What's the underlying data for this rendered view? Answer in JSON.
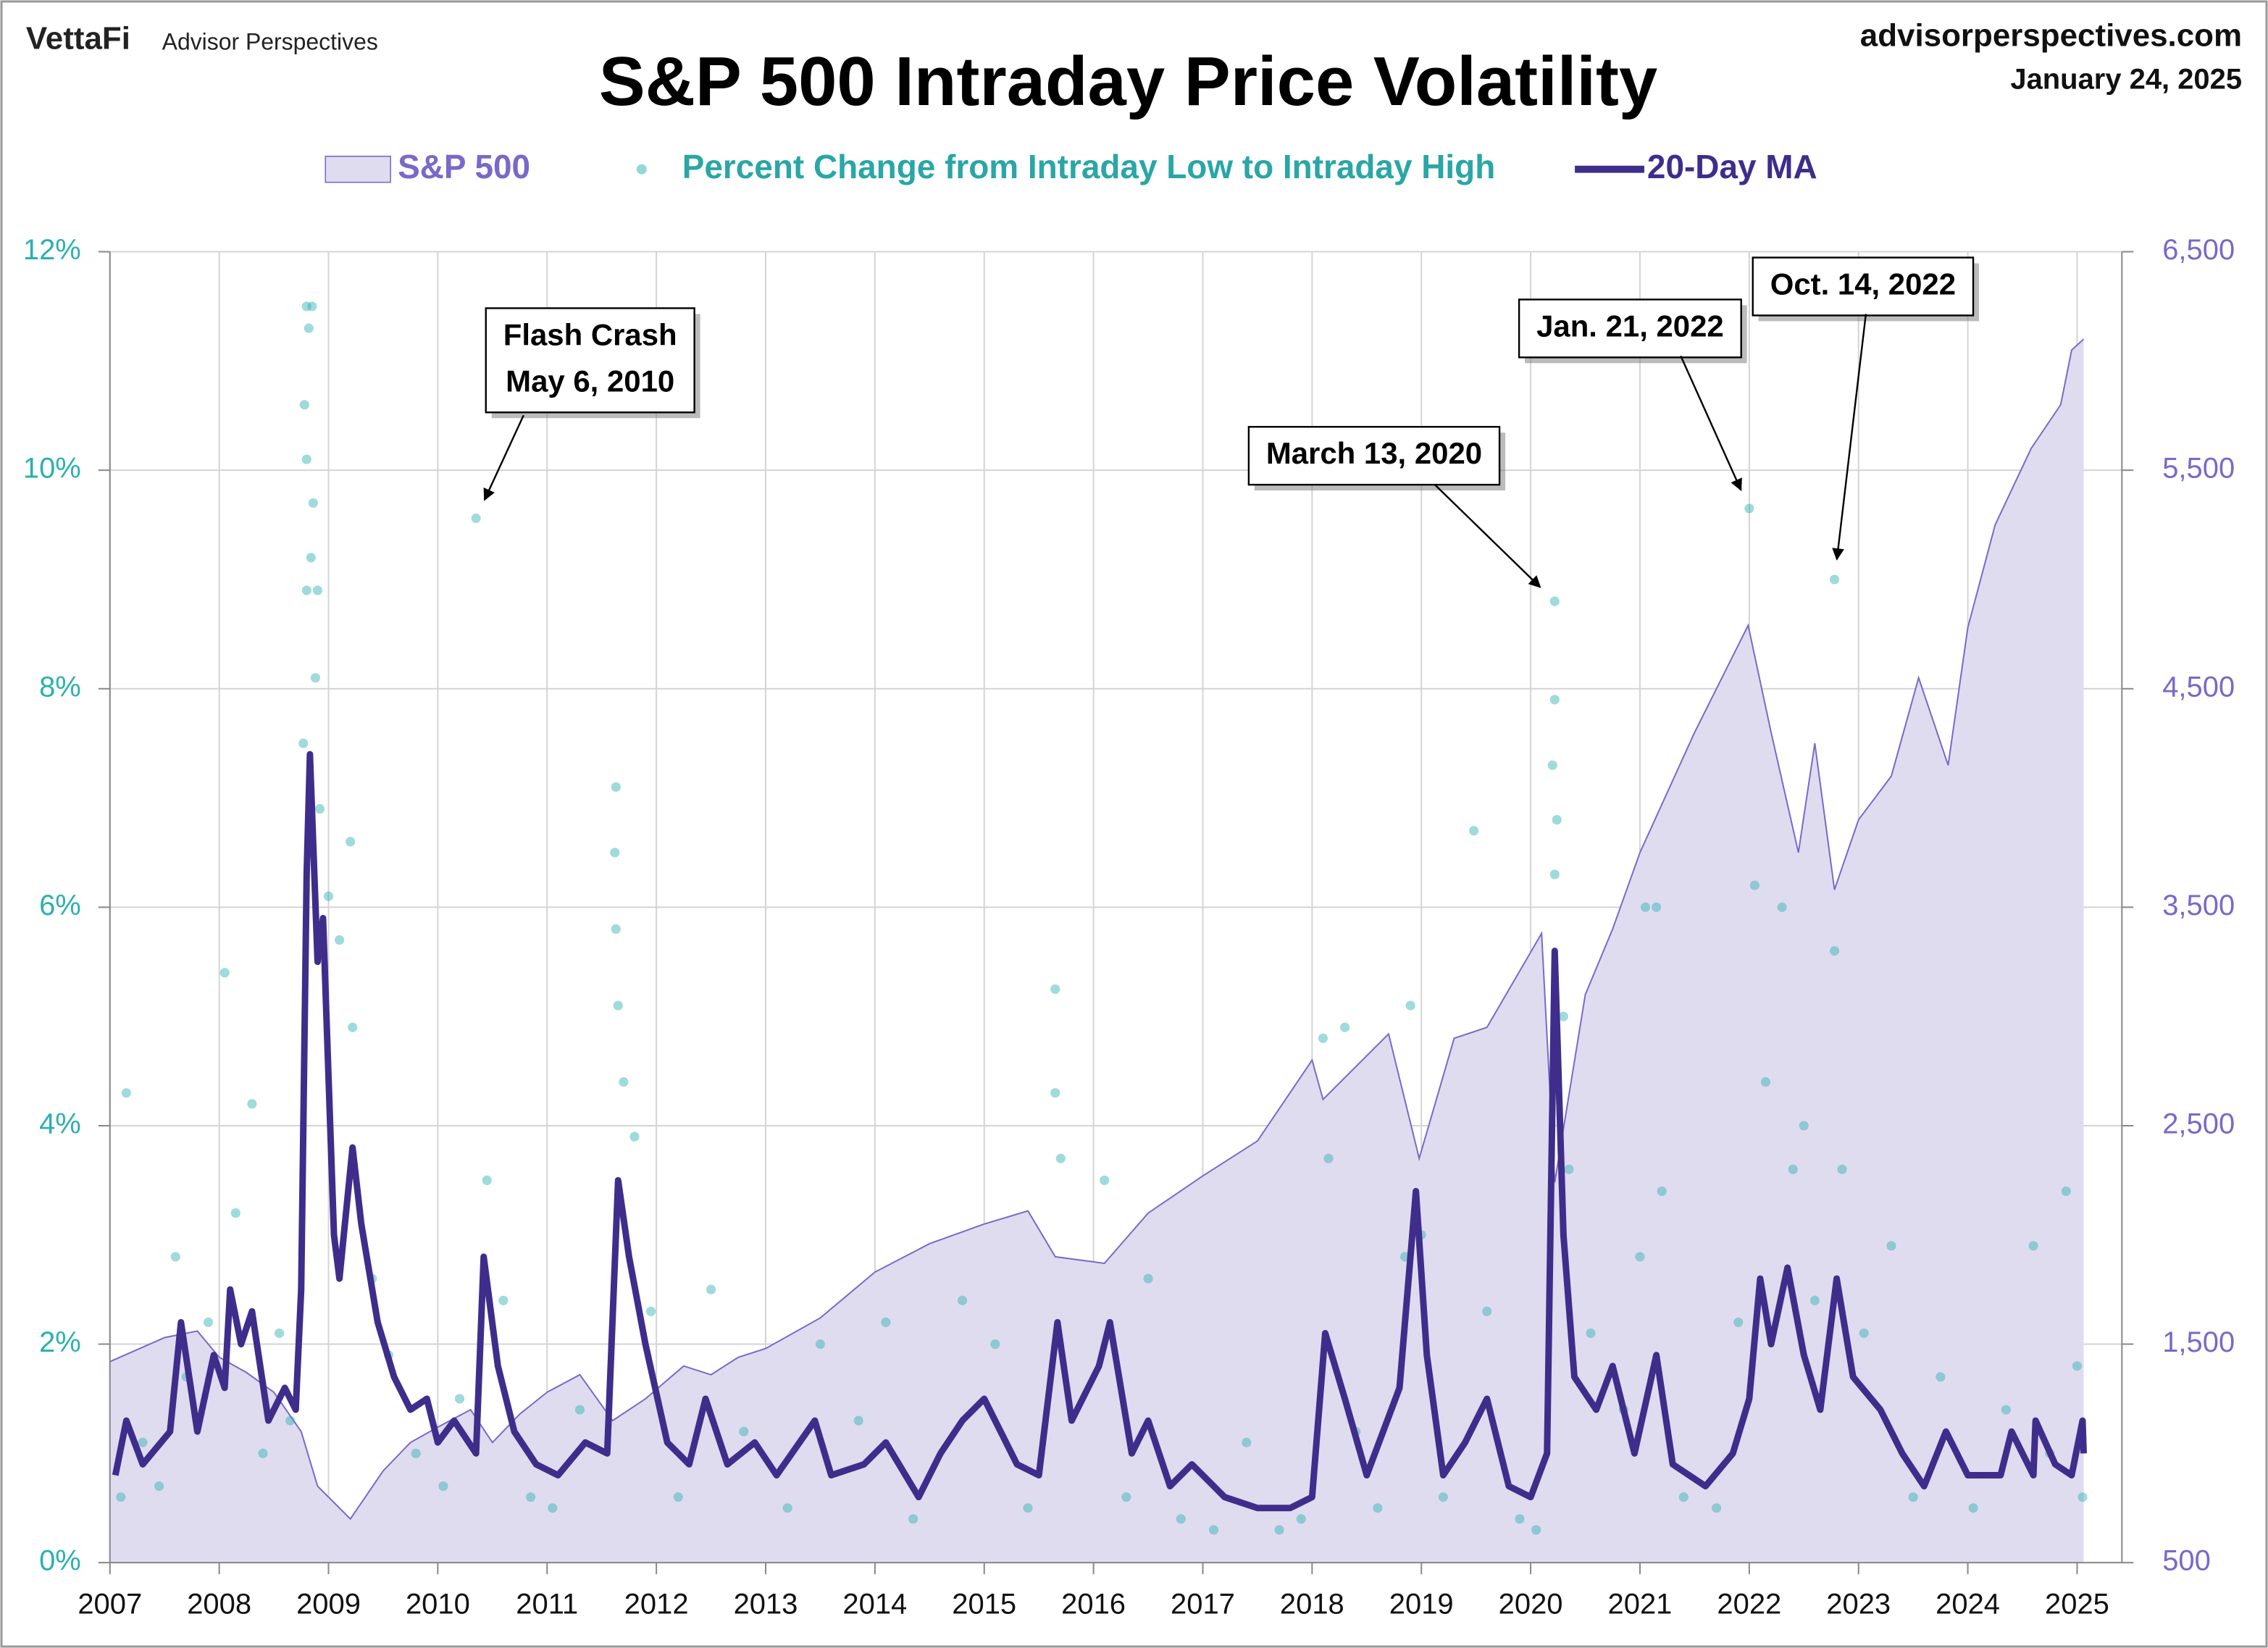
{
  "header": {
    "brand": "VettaFi",
    "publisher": "Advisor Perspectives",
    "site": "advisorperspectives.com",
    "date": "January 24, 2025"
  },
  "chart_data": {
    "type": "combo",
    "title": "S&P 500 Intraday Price Volatility",
    "grid": true,
    "xlim": [
      2007,
      2025.41
    ],
    "xticks": [
      2007,
      2008,
      2009,
      2010,
      2011,
      2012,
      2013,
      2014,
      2015,
      2016,
      2017,
      2018,
      2019,
      2020,
      2021,
      2022,
      2023,
      2024,
      2025
    ],
    "ylim": [
      0,
      12
    ],
    "yticks": [
      {
        "value": 0,
        "label": "0%"
      },
      {
        "value": 2,
        "label": "2%"
      },
      {
        "value": 4,
        "label": "4%"
      },
      {
        "value": 6,
        "label": "6%"
      },
      {
        "value": 8,
        "label": "8%"
      },
      {
        "value": 10,
        "label": "10%"
      },
      {
        "value": 12,
        "label": "12%"
      }
    ],
    "y2lim": [
      500,
      6500
    ],
    "y2ticks": [
      500,
      {
        "value": 1500,
        "label": "1,500"
      },
      {
        "value": 2500,
        "label": "2,500"
      },
      {
        "value": 3500,
        "label": "3,500"
      },
      {
        "value": 4500,
        "label": "4,500"
      },
      {
        "value": 5500,
        "label": "5,500"
      },
      {
        "value": 6500,
        "label": "6,500"
      }
    ],
    "series": [
      {
        "name": "S&P 500",
        "type": "area",
        "axis": "y2",
        "color": "#7b68c8",
        "fill": "#e0dcf0",
        "x": [
          2007.0,
          2007.5,
          2007.8,
          2008.0,
          2008.25,
          2008.5,
          2008.75,
          2008.9,
          2009.2,
          2009.5,
          2009.75,
          2010.0,
          2010.3,
          2010.5,
          2010.75,
          2011.0,
          2011.3,
          2011.6,
          2011.9,
          2012.25,
          2012.5,
          2012.75,
          2013.0,
          2013.5,
          2014.0,
          2014.5,
          2015.0,
          2015.4,
          2015.65,
          2016.1,
          2016.5,
          2017.0,
          2017.5,
          2018.0,
          2018.1,
          2018.7,
          2018.98,
          2019.3,
          2019.6,
          2020.1,
          2020.22,
          2020.5,
          2020.75,
          2021.0,
          2021.5,
          2021.99,
          2022.2,
          2022.45,
          2022.6,
          2022.78,
          2023.0,
          2023.3,
          2023.55,
          2023.82,
          2024.0,
          2024.25,
          2024.58,
          2024.85,
          2024.95,
          2025.06
        ],
        "values": [
          1420,
          1530,
          1560,
          1440,
          1370,
          1280,
          1100,
          850,
          700,
          920,
          1050,
          1120,
          1200,
          1050,
          1180,
          1280,
          1360,
          1150,
          1250,
          1400,
          1360,
          1440,
          1480,
          1620,
          1830,
          1960,
          2050,
          2110,
          1900,
          1870,
          2100,
          2270,
          2430,
          2800,
          2620,
          2920,
          2350,
          2900,
          2950,
          3380,
          2240,
          3100,
          3400,
          3750,
          4300,
          4790,
          4300,
          3750,
          4250,
          3580,
          3900,
          4100,
          4550,
          4150,
          4780,
          5250,
          5600,
          5800,
          6050,
          6100
        ]
      },
      {
        "name": "Percent Change from Intraday Low to Intraday High",
        "type": "scatter",
        "color": "#2bb0b0",
        "x": [
          2008.8,
          2008.85,
          2008.82,
          2008.78,
          2008.8,
          2008.86,
          2008.84,
          2008.8,
          2008.9,
          2008.88,
          2008.77,
          2008.92,
          2009.0,
          2009.1,
          2009.2,
          2009.22,
          2010.35,
          2011.63,
          2011.62,
          2011.63,
          2011.65,
          2011.7,
          2020.22,
          2020.22,
          2020.2,
          2020.24,
          2020.22,
          2020.3,
          2019.48,
          2022.0,
          2022.78,
          2021.15,
          2021.05,
          2022.05,
          2022.3,
          2022.78,
          2018.1,
          2018.9,
          2015.65,
          2015.65,
          2007.15,
          2008.05,
          2008.3,
          2018.3,
          2022.5,
          2007.1,
          2007.3,
          2007.45,
          2007.6,
          2007.7,
          2007.9,
          2008.15,
          2008.4,
          2008.55,
          2008.65,
          2009.4,
          2009.55,
          2009.8,
          2010.05,
          2010.2,
          2010.45,
          2010.6,
          2010.85,
          2011.05,
          2011.3,
          2011.8,
          2011.95,
          2012.2,
          2012.5,
          2012.8,
          2013.2,
          2013.5,
          2013.85,
          2014.1,
          2014.35,
          2014.8,
          2015.1,
          2015.4,
          2015.7,
          2016.1,
          2016.3,
          2016.5,
          2016.8,
          2017.1,
          2017.4,
          2017.7,
          2017.9,
          2018.15,
          2018.4,
          2018.6,
          2018.85,
          2019.0,
          2019.2,
          2019.6,
          2019.9,
          2020.05,
          2020.35,
          2020.55,
          2020.85,
          2021.0,
          2021.2,
          2021.4,
          2021.7,
          2021.9,
          2022.15,
          2022.4,
          2022.6,
          2022.85,
          2023.05,
          2023.3,
          2023.5,
          2023.75,
          2024.05,
          2024.35,
          2024.6,
          2024.75,
          2024.9,
          2025.0,
          2025.05
        ],
        "values": [
          11.5,
          11.5,
          11.3,
          10.6,
          10.1,
          9.7,
          9.2,
          8.9,
          8.9,
          8.1,
          7.5,
          6.9,
          6.1,
          5.7,
          6.6,
          4.9,
          9.56,
          7.1,
          6.5,
          5.8,
          5.1,
          4.4,
          8.8,
          7.9,
          7.3,
          6.8,
          6.3,
          5.0,
          6.7,
          9.65,
          9.0,
          6.0,
          6.0,
          6.2,
          6.0,
          5.6,
          4.8,
          5.1,
          5.25,
          4.3,
          4.3,
          5.4,
          4.2,
          4.9,
          4.0,
          0.6,
          1.1,
          0.7,
          2.8,
          1.7,
          2.2,
          3.2,
          1.0,
          2.1,
          1.3,
          2.6,
          1.9,
          1.0,
          0.7,
          1.5,
          3.5,
          2.4,
          0.6,
          0.5,
          1.4,
          3.9,
          2.3,
          0.6,
          2.5,
          1.2,
          0.5,
          2.0,
          1.3,
          2.2,
          0.4,
          2.4,
          2.0,
          0.5,
          3.7,
          3.5,
          0.6,
          2.6,
          0.4,
          0.3,
          1.1,
          0.3,
          0.4,
          3.7,
          1.2,
          0.5,
          2.8,
          3.0,
          0.6,
          2.3,
          0.4,
          0.3,
          3.6,
          2.1,
          1.4,
          2.8,
          3.4,
          0.6,
          0.5,
          2.2,
          4.4,
          3.6,
          2.4,
          3.6,
          2.1,
          2.9,
          0.6,
          1.7,
          0.5,
          1.4,
          2.9,
          1.0,
          3.4,
          1.8,
          0.6
        ]
      },
      {
        "name": "20-Day MA",
        "type": "line",
        "color": "#3f2d8c",
        "x": [
          2007.05,
          2007.15,
          2007.3,
          2007.55,
          2007.65,
          2007.8,
          2007.95,
          2008.05,
          2008.1,
          2008.2,
          2008.3,
          2008.45,
          2008.6,
          2008.7,
          2008.75,
          2008.8,
          2008.83,
          2008.9,
          2008.95,
          2009.05,
          2009.1,
          2009.22,
          2009.3,
          2009.45,
          2009.6,
          2009.75,
          2009.9,
          2010.0,
          2010.15,
          2010.35,
          2010.42,
          2010.55,
          2010.7,
          2010.9,
          2011.1,
          2011.35,
          2011.55,
          2011.65,
          2011.75,
          2011.9,
          2012.1,
          2012.3,
          2012.45,
          2012.65,
          2012.9,
          2013.1,
          2013.45,
          2013.6,
          2013.9,
          2014.1,
          2014.4,
          2014.6,
          2014.8,
          2015.0,
          2015.3,
          2015.5,
          2015.67,
          2015.8,
          2016.05,
          2016.15,
          2016.35,
          2016.5,
          2016.7,
          2016.9,
          2017.2,
          2017.5,
          2017.8,
          2018.0,
          2018.12,
          2018.3,
          2018.5,
          2018.8,
          2018.95,
          2019.05,
          2019.2,
          2019.4,
          2019.6,
          2019.8,
          2020.0,
          2020.15,
          2020.22,
          2020.3,
          2020.4,
          2020.6,
          2020.75,
          2020.95,
          2021.15,
          2021.3,
          2021.6,
          2021.85,
          2022.0,
          2022.1,
          2022.2,
          2022.35,
          2022.5,
          2022.65,
          2022.8,
          2022.95,
          2023.2,
          2023.4,
          2023.6,
          2023.8,
          2024.0,
          2024.3,
          2024.4,
          2024.6,
          2024.62,
          2024.8,
          2024.95,
          2025.05,
          2025.06
        ],
        "values": [
          0.8,
          1.3,
          0.9,
          1.2,
          2.2,
          1.2,
          1.9,
          1.6,
          2.5,
          2.0,
          2.3,
          1.3,
          1.6,
          1.4,
          2.5,
          6.3,
          7.4,
          5.5,
          5.9,
          3.0,
          2.6,
          3.8,
          3.1,
          2.2,
          1.7,
          1.4,
          1.5,
          1.1,
          1.3,
          1.0,
          2.8,
          1.8,
          1.2,
          0.9,
          0.8,
          1.1,
          1.0,
          3.5,
          2.8,
          2.0,
          1.1,
          0.9,
          1.5,
          0.9,
          1.1,
          0.8,
          1.3,
          0.8,
          0.9,
          1.1,
          0.6,
          1.0,
          1.3,
          1.5,
          0.9,
          0.8,
          2.2,
          1.3,
          1.8,
          2.2,
          1.0,
          1.3,
          0.7,
          0.9,
          0.6,
          0.5,
          0.5,
          0.6,
          2.1,
          1.5,
          0.8,
          1.6,
          3.4,
          1.9,
          0.8,
          1.1,
          1.5,
          0.7,
          0.6,
          1.0,
          5.6,
          3.0,
          1.7,
          1.4,
          1.8,
          1.0,
          1.9,
          0.9,
          0.7,
          1.0,
          1.5,
          2.6,
          2.0,
          2.7,
          1.9,
          1.4,
          2.6,
          1.7,
          1.4,
          1.0,
          0.7,
          1.2,
          0.8,
          0.8,
          1.2,
          0.8,
          1.3,
          0.9,
          0.8,
          1.3,
          1.0
        ]
      }
    ],
    "annotations": [
      {
        "lines": [
          "Flash Crash",
          "May 6, 2010"
        ],
        "x": 2010.35,
        "y": 9.56
      },
      {
        "lines": [
          "March 13, 2020"
        ],
        "x": 2020.22,
        "y": 8.8
      },
      {
        "lines": [
          "Jan. 21, 2022"
        ],
        "x": 2022.0,
        "y": 9.65
      },
      {
        "lines": [
          "Oct. 14, 2022"
        ],
        "x": 2022.78,
        "y": 9.0
      }
    ]
  }
}
